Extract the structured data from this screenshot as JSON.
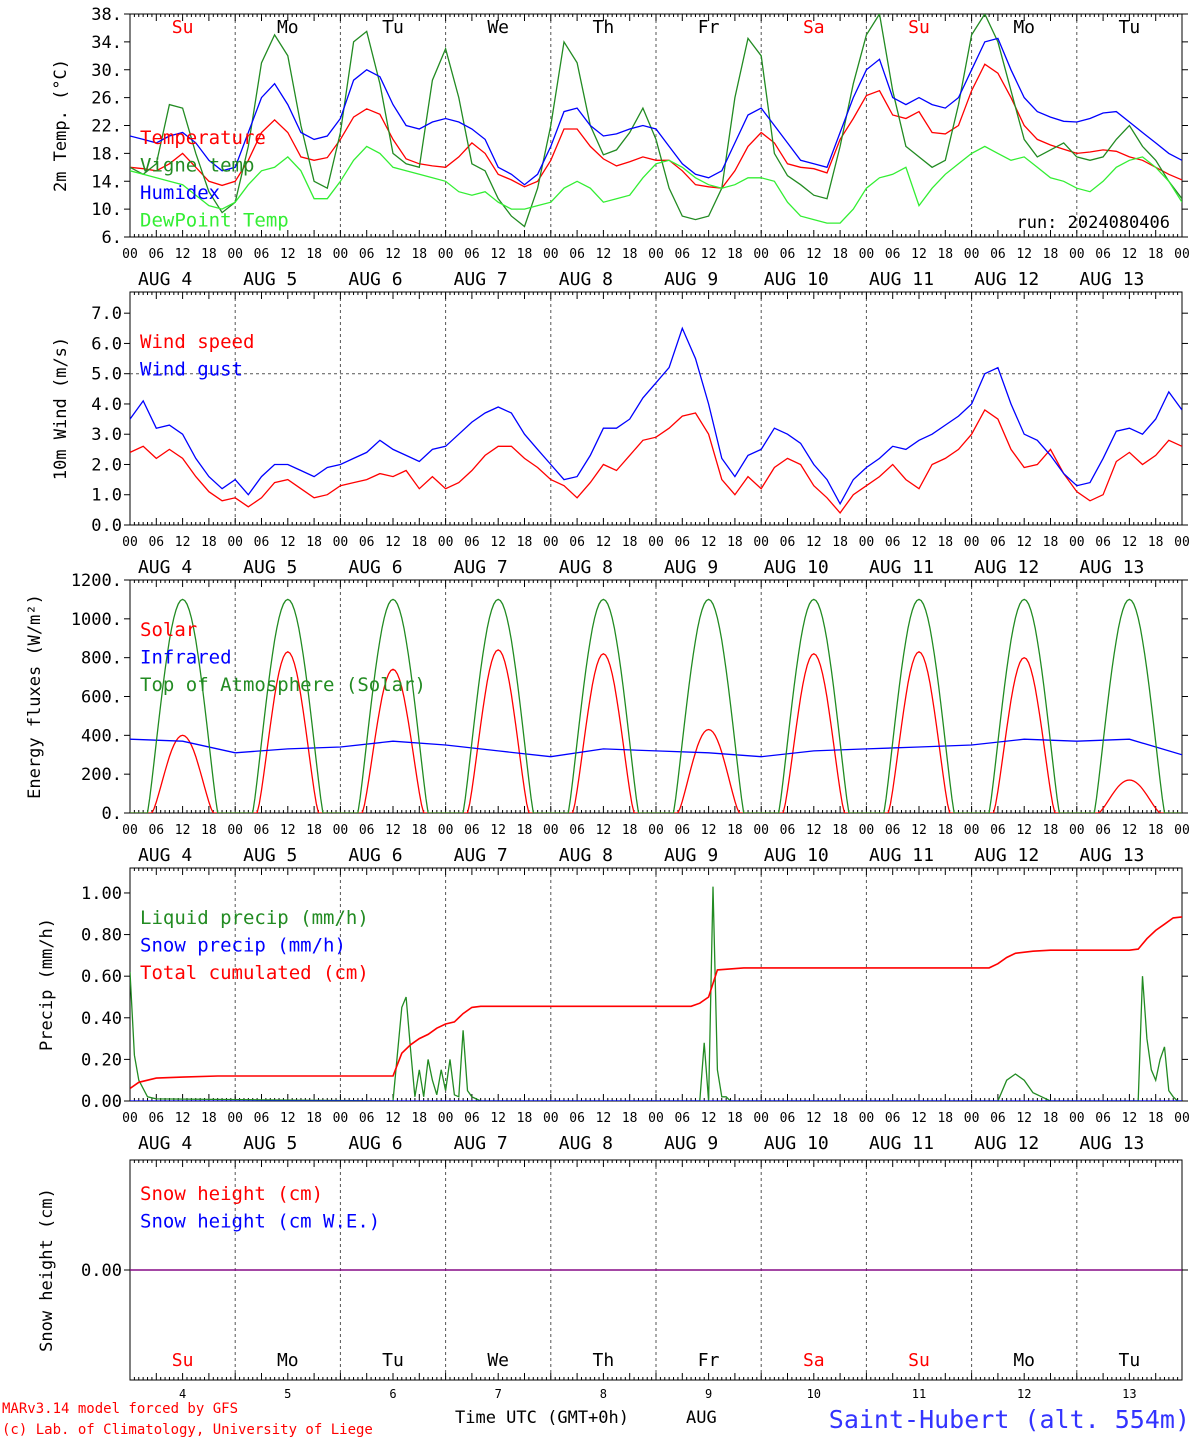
{
  "colors": {
    "red": "#ff0000",
    "darkgreen": "#228b22",
    "blue": "#0000ff",
    "lightgreen": "#33ee33",
    "purple": "#800080",
    "gray": "#555555"
  },
  "days": {
    "labels": [
      "Su",
      "Mo",
      "Tu",
      "We",
      "Th",
      "Fr",
      "Sa",
      "Su",
      "Mo",
      "Tu"
    ],
    "label_colors": [
      "#ff0000",
      "#000000",
      "#000000",
      "#000000",
      "#000000",
      "#000000",
      "#ff0000",
      "#ff0000",
      "#000000",
      "#000000"
    ],
    "dates": [
      "AUG  4",
      "AUG  5",
      "AUG  6",
      "AUG  7",
      "AUG  8",
      "AUG  9",
      "AUG 10",
      "AUG 11",
      "AUG 12",
      "AUG 13"
    ],
    "numbers": [
      "4",
      "5",
      "6",
      "7",
      "8",
      "9",
      "10",
      "11",
      "12",
      "13"
    ],
    "hour_ticks": [
      "00",
      "06",
      "12",
      "18"
    ],
    "final_tick": "00"
  },
  "chart_data": [
    {
      "type": "line",
      "ylabel": "2m Temp. (°C)",
      "ylim": [
        6,
        38
      ],
      "yticks": [
        "6.",
        "10.",
        "14.",
        "18.",
        "22.",
        "26.",
        "30.",
        "34.",
        "38."
      ],
      "ytick_values": [
        6,
        10,
        14,
        18,
        22,
        26,
        30,
        34,
        38
      ],
      "annotation": "run: 2024080406",
      "x": [
        0,
        3,
        6,
        9,
        12,
        15,
        18,
        21,
        24,
        27,
        30,
        33,
        36,
        39,
        42,
        45,
        48,
        51,
        54,
        57,
        60,
        63,
        66,
        69,
        72,
        75,
        78,
        81,
        84,
        87,
        90,
        93,
        96,
        99,
        102,
        105,
        108,
        111,
        114,
        117,
        120,
        123,
        126,
        129,
        132,
        135,
        138,
        141,
        144,
        147,
        150,
        153,
        156,
        159,
        162,
        165,
        168,
        171,
        174,
        177,
        180,
        183,
        186,
        189,
        192,
        195,
        198,
        201,
        204,
        207,
        210,
        213,
        216,
        219,
        222,
        225,
        228,
        231,
        234,
        237,
        240
      ],
      "series": [
        {
          "name": "Temperature",
          "color": "#ff0000",
          "values": [
            16,
            15.8,
            15.5,
            16.5,
            18,
            16,
            14,
            13.4,
            14,
            17,
            21,
            22.8,
            21,
            17.5,
            17,
            17.4,
            20,
            23.2,
            24.4,
            23.6,
            20,
            17.2,
            16.5,
            16.2,
            16,
            17.5,
            19.5,
            18,
            15,
            14.2,
            13.2,
            14,
            17,
            21.5,
            21.5,
            19,
            17.2,
            16.2,
            16.8,
            17.5,
            17,
            17,
            15.5,
            13.5,
            13.2,
            13,
            15.5,
            19,
            21,
            19.5,
            16.5,
            16,
            15.8,
            15.2,
            20,
            23,
            26.3,
            27,
            23.5,
            23,
            24,
            21,
            20.8,
            22,
            27,
            30.8,
            29.5,
            26,
            22,
            20,
            19.2,
            18.6,
            18,
            18.2,
            18.5,
            18.3,
            17.5,
            17,
            16,
            15,
            14.2
          ]
        },
        {
          "name": "Vigne temp",
          "color": "#228b22",
          "values": [
            16,
            15,
            16.5,
            25,
            24.5,
            18,
            12.5,
            9.5,
            11,
            19,
            31,
            35,
            32,
            22,
            14,
            13,
            21,
            34,
            35.5,
            28,
            18,
            16.5,
            16,
            28.5,
            33,
            26,
            16.5,
            15.5,
            11.5,
            9,
            7.5,
            13,
            22,
            34,
            31,
            22,
            17.8,
            18.5,
            21,
            24.5,
            20,
            13,
            9,
            8.5,
            9,
            13,
            26,
            34.5,
            32,
            18,
            14.8,
            13.5,
            12,
            11.5,
            19,
            28,
            35,
            38,
            27,
            19,
            17.5,
            16,
            17,
            25,
            35,
            38,
            34,
            27,
            20,
            17.5,
            18.5,
            19.5,
            17.5,
            17,
            17.5,
            20,
            22,
            19,
            17,
            14,
            11.5
          ]
        },
        {
          "name": "Humidex",
          "color": "#0000ff",
          "values": [
            20.5,
            20,
            19.5,
            20.5,
            21,
            19.5,
            17,
            15.5,
            16,
            21,
            26,
            28,
            25,
            21,
            20,
            20.5,
            23,
            28.5,
            30,
            29,
            25,
            22,
            21.5,
            22.5,
            23,
            22.5,
            21.5,
            20,
            16,
            15,
            13.5,
            15,
            19,
            24,
            24.5,
            22,
            20.5,
            20.8,
            21.5,
            22,
            21.5,
            19,
            16.5,
            15,
            14.5,
            15.5,
            19.5,
            23.5,
            24.5,
            22,
            19.5,
            17,
            16.5,
            16,
            21,
            26,
            30,
            31.5,
            26,
            25,
            26,
            25,
            24.5,
            26,
            30,
            34,
            34.5,
            30,
            26,
            24,
            23.2,
            22.6,
            22.5,
            23,
            23.8,
            24,
            22.5,
            21,
            19.5,
            18,
            17
          ]
        },
        {
          "name": "DewPoint Temp",
          "color": "#33ee33",
          "values": [
            15.5,
            15,
            14.5,
            14,
            13.5,
            12,
            10.5,
            10,
            11,
            13.5,
            15.5,
            16,
            17.5,
            15.5,
            11.5,
            11.5,
            14,
            17,
            19,
            18,
            16,
            15.5,
            15,
            14.5,
            14,
            12.5,
            12,
            12.5,
            11,
            10,
            10,
            10.5,
            11,
            13,
            14,
            13,
            11,
            11.5,
            12,
            14.5,
            16.5,
            17,
            16,
            14.5,
            13.5,
            13,
            13.5,
            14.5,
            14.5,
            14,
            11,
            9,
            8.5,
            8,
            8,
            10,
            13,
            14.5,
            15,
            16,
            10.5,
            13,
            15,
            16.5,
            18,
            19,
            18,
            17,
            17.5,
            16,
            14.5,
            14,
            13,
            12.5,
            14,
            16,
            17,
            17.5,
            16,
            14,
            11
          ]
        }
      ]
    },
    {
      "type": "line",
      "ylabel": "10m Wind (m/s)",
      "ylim": [
        0,
        7.7
      ],
      "yticks": [
        "0.0",
        "1.0",
        "2.0",
        "3.0",
        "4.0",
        "5.0",
        "6.0",
        "7.0"
      ],
      "ytick_values": [
        0,
        1,
        2,
        3,
        4,
        5,
        6,
        7
      ],
      "reference_line": 5,
      "x": [
        0,
        3,
        6,
        9,
        12,
        15,
        18,
        21,
        24,
        27,
        30,
        33,
        36,
        39,
        42,
        45,
        48,
        51,
        54,
        57,
        60,
        63,
        66,
        69,
        72,
        75,
        78,
        81,
        84,
        87,
        90,
        93,
        96,
        99,
        102,
        105,
        108,
        111,
        114,
        117,
        120,
        123,
        126,
        129,
        132,
        135,
        138,
        141,
        144,
        147,
        150,
        153,
        156,
        159,
        162,
        165,
        168,
        171,
        174,
        177,
        180,
        183,
        186,
        189,
        192,
        195,
        198,
        201,
        204,
        207,
        210,
        213,
        216,
        219,
        222,
        225,
        228,
        231,
        234,
        237,
        240
      ],
      "series": [
        {
          "name": "Wind speed",
          "color": "#ff0000",
          "values": [
            2.4,
            2.6,
            2.2,
            2.5,
            2.2,
            1.6,
            1.1,
            0.8,
            0.9,
            0.6,
            0.9,
            1.4,
            1.5,
            1.2,
            0.9,
            1.0,
            1.3,
            1.4,
            1.5,
            1.7,
            1.6,
            1.8,
            1.2,
            1.6,
            1.2,
            1.4,
            1.8,
            2.3,
            2.6,
            2.6,
            2.2,
            1.9,
            1.5,
            1.3,
            0.9,
            1.4,
            2.0,
            1.8,
            2.3,
            2.8,
            2.9,
            3.2,
            3.6,
            3.7,
            3.0,
            1.5,
            1.0,
            1.6,
            1.2,
            1.9,
            2.2,
            2.0,
            1.3,
            0.9,
            0.4,
            1.0,
            1.3,
            1.6,
            2.0,
            1.5,
            1.2,
            2.0,
            2.2,
            2.5,
            3.0,
            3.8,
            3.5,
            2.5,
            1.9,
            2.0,
            2.5,
            1.7,
            1.1,
            0.8,
            1.0,
            2.1,
            2.4,
            2.0,
            2.3,
            2.8,
            2.6
          ]
        },
        {
          "name": "Wind gust",
          "color": "#0000ff",
          "values": [
            3.5,
            4.1,
            3.2,
            3.3,
            3.0,
            2.2,
            1.6,
            1.2,
            1.5,
            1.0,
            1.6,
            2.0,
            2.0,
            1.8,
            1.6,
            1.9,
            2.0,
            2.2,
            2.4,
            2.8,
            2.5,
            2.3,
            2.1,
            2.5,
            2.6,
            3.0,
            3.4,
            3.7,
            3.9,
            3.7,
            3.0,
            2.5,
            2.0,
            1.5,
            1.6,
            2.3,
            3.2,
            3.2,
            3.5,
            4.2,
            4.7,
            5.2,
            6.5,
            5.5,
            4.0,
            2.2,
            1.6,
            2.3,
            2.5,
            3.2,
            3.0,
            2.7,
            2.0,
            1.5,
            0.7,
            1.5,
            1.9,
            2.2,
            2.6,
            2.5,
            2.8,
            3.0,
            3.3,
            3.6,
            4.0,
            5.0,
            5.2,
            4.0,
            3.0,
            2.8,
            2.3,
            1.7,
            1.3,
            1.4,
            2.2,
            3.1,
            3.2,
            3.0,
            3.5,
            4.4,
            3.8
          ]
        }
      ]
    },
    {
      "type": "line",
      "ylabel": "Energy fluxes (W/m²)",
      "ylim": [
        0,
        1200
      ],
      "yticks": [
        "0.",
        "200.",
        "400.",
        "600.",
        "800.",
        "1000.",
        "1200."
      ],
      "ytick_values": [
        0,
        200,
        400,
        600,
        800,
        1000,
        1200
      ],
      "series": [
        {
          "name": "Solar",
          "color": "#ff0000",
          "peaks": [
            400,
            830,
            740,
            840,
            820,
            430,
            820,
            830,
            800,
            170
          ]
        },
        {
          "name": "Infrared",
          "color": "#0000ff",
          "x": [
            0,
            12,
            24,
            36,
            48,
            60,
            72,
            84,
            96,
            108,
            120,
            132,
            144,
            156,
            168,
            180,
            192,
            204,
            216,
            228,
            240
          ],
          "values": [
            380,
            370,
            310,
            330,
            340,
            370,
            350,
            320,
            290,
            330,
            320,
            310,
            290,
            320,
            330,
            340,
            350,
            380,
            370,
            380,
            300
          ]
        },
        {
          "name": "Top of Atmosphere (Solar)",
          "color": "#228b22",
          "peak": 1100
        }
      ]
    },
    {
      "type": "line",
      "ylabel": "Precip (mm/h)",
      "ylim": [
        0,
        1.12
      ],
      "yticks": [
        "0.00",
        "0.20",
        "0.40",
        "0.60",
        "0.80",
        "1.00"
      ],
      "ytick_values": [
        0,
        0.2,
        0.4,
        0.6,
        0.8,
        1.0
      ],
      "series": [
        {
          "name": "Liquid precip (mm/h)",
          "color": "#228b22",
          "x": [
            0,
            1,
            2,
            4,
            6,
            60,
            62,
            63,
            64,
            65,
            66,
            67,
            68,
            69,
            70,
            71,
            72,
            73,
            74,
            75,
            76,
            77,
            78,
            80,
            130,
            131,
            132,
            133,
            134,
            135,
            136,
            137,
            198,
            200,
            202,
            204,
            206,
            208,
            210,
            230,
            231,
            232,
            233,
            234,
            235,
            236,
            237,
            238,
            239,
            240
          ],
          "values": [
            0.62,
            0.22,
            0.1,
            0.02,
            0.01,
            0,
            0.45,
            0.5,
            0.25,
            0.02,
            0.15,
            0.02,
            0.2,
            0.1,
            0.03,
            0.15,
            0.05,
            0.2,
            0.03,
            0.02,
            0.34,
            0.05,
            0.02,
            0,
            0,
            0.28,
            0,
            1.03,
            0.15,
            0.02,
            0.02,
            0,
            0,
            0.1,
            0.13,
            0.1,
            0.04,
            0.02,
            0,
            0,
            0.6,
            0.3,
            0.15,
            0.1,
            0.2,
            0.26,
            0.05,
            0.02,
            0,
            0
          ]
        },
        {
          "name": "Snow precip (mm/h)",
          "color": "#0000ff",
          "x": [
            0,
            240
          ],
          "values": [
            0,
            0
          ]
        },
        {
          "name": "Total cumulated (cm)",
          "color": "#ff0000",
          "x": [
            0,
            2,
            6,
            12,
            20,
            60,
            62,
            64,
            66,
            68,
            70,
            72,
            74,
            76,
            78,
            80,
            82,
            128,
            130,
            132,
            134,
            140,
            196,
            198,
            200,
            202,
            206,
            210,
            220,
            228,
            230,
            232,
            234,
            236,
            238,
            240
          ],
          "values": [
            0.06,
            0.09,
            0.11,
            0.115,
            0.12,
            0.12,
            0.23,
            0.27,
            0.3,
            0.32,
            0.35,
            0.37,
            0.38,
            0.42,
            0.45,
            0.455,
            0.455,
            0.455,
            0.47,
            0.5,
            0.63,
            0.64,
            0.64,
            0.66,
            0.69,
            0.71,
            0.72,
            0.725,
            0.725,
            0.725,
            0.73,
            0.78,
            0.82,
            0.85,
            0.88,
            0.885
          ]
        }
      ]
    },
    {
      "type": "line",
      "ylabel": "Snow height (cm)",
      "ylim": [
        -1,
        1
      ],
      "yticks": [
        "0.00"
      ],
      "ytick_values": [
        0
      ],
      "series": [
        {
          "name": "Snow height (cm)",
          "color": "#ff0000",
          "x": [
            0,
            240
          ],
          "values": [
            0,
            0
          ]
        },
        {
          "name": "Snow height (cm W.E.)",
          "color": "#0000ff",
          "x": [
            0,
            240
          ],
          "values": [
            0,
            0
          ]
        }
      ]
    }
  ],
  "footer": {
    "model": "MARv3.14 model forced by GFS",
    "lab": "(c) Lab. of Climatology, University of Liege",
    "xlabel": "Time UTC (GMT+0h)",
    "month": "AUG",
    "station": "Saint-Hubert (alt. 554m)"
  }
}
